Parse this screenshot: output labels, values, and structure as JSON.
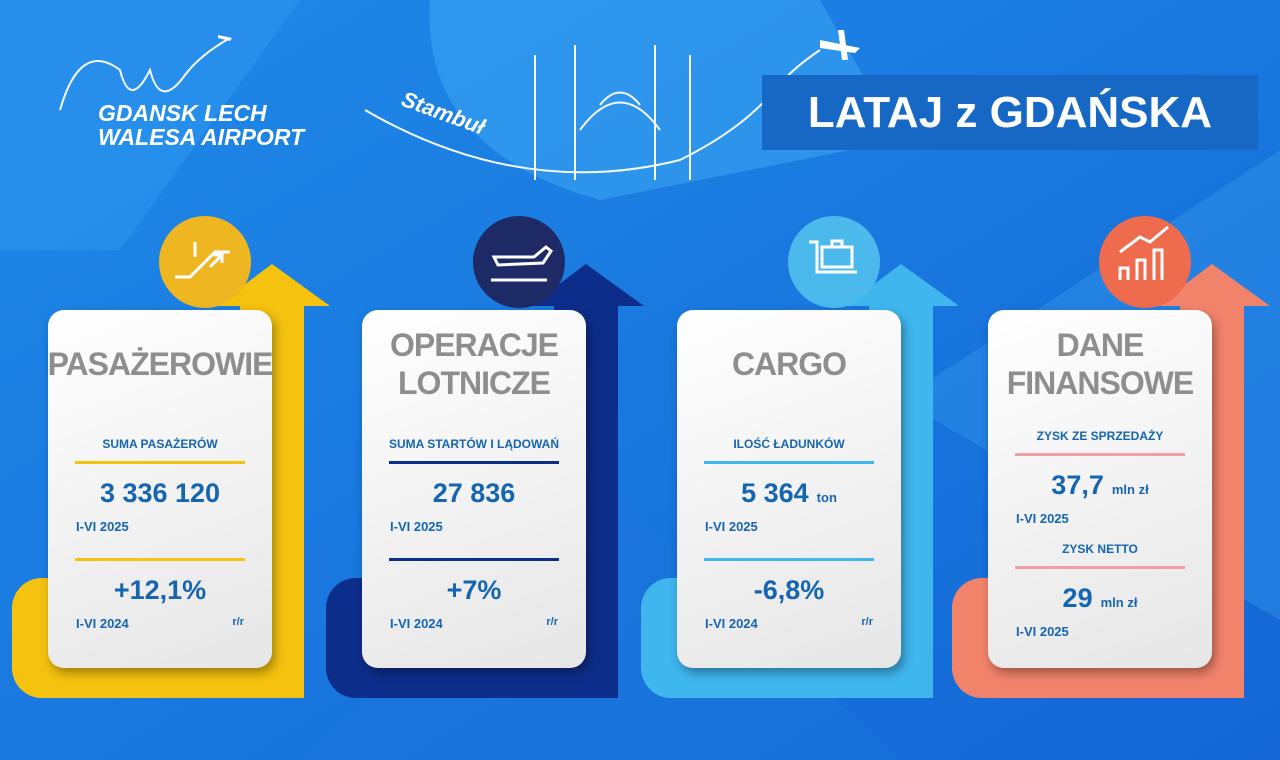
{
  "header": {
    "logo": [
      "GDANSK LECH",
      "WALESA AIRPORT"
    ],
    "destination": "Stambuł",
    "headline": "LATAJ z GDAŃSKA"
  },
  "cards": [
    {
      "title": [
        "PASAŻEROWIE"
      ],
      "blocks": [
        {
          "label": "SUMA PASAŻERÓW",
          "value": "3 336 120",
          "period": "I-VI 2025"
        },
        {
          "value": "+12,1%",
          "period": "I-VI 2024",
          "note": "r/r"
        }
      ]
    },
    {
      "title": [
        "OPERACJE",
        "LOTNICZE"
      ],
      "blocks": [
        {
          "label": "SUMA STARTÓW I LĄDOWAŃ",
          "value": "27 836",
          "period": "I-VI 2025"
        },
        {
          "value": "+7%",
          "period": "I-VI 2024",
          "note": "r/r"
        }
      ]
    },
    {
      "title": [
        "CARGO"
      ],
      "blocks": [
        {
          "label": "ILOŚĆ ŁADUNKÓW",
          "value": "5 364",
          "unit": "ton",
          "period": "I-VI 2025"
        },
        {
          "value": "-6,8%",
          "period": "I-VI 2024",
          "note": "r/r"
        }
      ]
    },
    {
      "title": [
        "DANE",
        "FINANSOWE"
      ],
      "blocks": [
        {
          "label": "ZYSK ZE SPRZEDAŻY",
          "value": "37,7",
          "unit": "mln zł",
          "period": "I-VI 2025"
        },
        {
          "label": "ZYSK NETTO",
          "value": "29",
          "unit": "mln zł",
          "period": "I-VI 2025"
        }
      ]
    }
  ]
}
